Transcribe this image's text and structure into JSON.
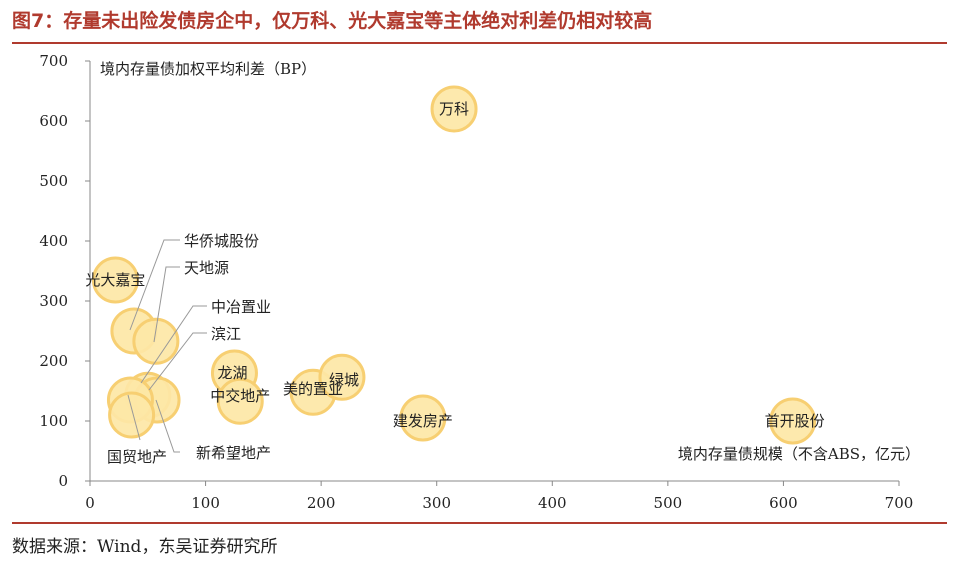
{
  "title": "图7：存量未出险发债房企中，仅万科、光大嘉宝等主体绝对利差仍相对较高",
  "source": "数据来源：Wind，东吴证券研究所",
  "colors": {
    "accent": "#b03a2e",
    "bubble_fill": "#fde7a6",
    "bubble_stroke": "#f7cf72"
  },
  "chart_data": {
    "type": "scatter",
    "title": "图7：存量未出险发债房企中，仅万科、光大嘉宝等主体绝对利差仍相对较高",
    "xlabel": "境内存量债规模（不含ABS，亿元）",
    "ylabel": "境内存量债加权平均利差（BP）",
    "xlim": [
      0,
      700
    ],
    "ylim": [
      0,
      700
    ],
    "xticks": [
      0,
      100,
      200,
      300,
      400,
      500,
      600,
      700
    ],
    "yticks": [
      0,
      100,
      200,
      300,
      400,
      500,
      600,
      700
    ],
    "grid": false,
    "legend": "none",
    "points": [
      {
        "name": "万科",
        "x": 315,
        "y": 620
      },
      {
        "name": "光大嘉宝",
        "x": 22,
        "y": 335
      },
      {
        "name": "华侨城股份",
        "x": 38,
        "y": 250
      },
      {
        "name": "天地源",
        "x": 57,
        "y": 233
      },
      {
        "name": "中冶置业",
        "x": 50,
        "y": 143
      },
      {
        "name": "滨江",
        "x": 58,
        "y": 135
      },
      {
        "name": "国贸地产",
        "x": 35,
        "y": 135
      },
      {
        "name": "新希望地产",
        "x": 36,
        "y": 110
      },
      {
        "name": "龙湖",
        "x": 125,
        "y": 180
      },
      {
        "name": "中交地产",
        "x": 130,
        "y": 133
      },
      {
        "name": "美的置业",
        "x": 193,
        "y": 148
      },
      {
        "name": "绿城",
        "x": 218,
        "y": 173
      },
      {
        "name": "建发房产",
        "x": 288,
        "y": 105
      },
      {
        "name": "首开股份",
        "x": 608,
        "y": 100
      }
    ]
  }
}
